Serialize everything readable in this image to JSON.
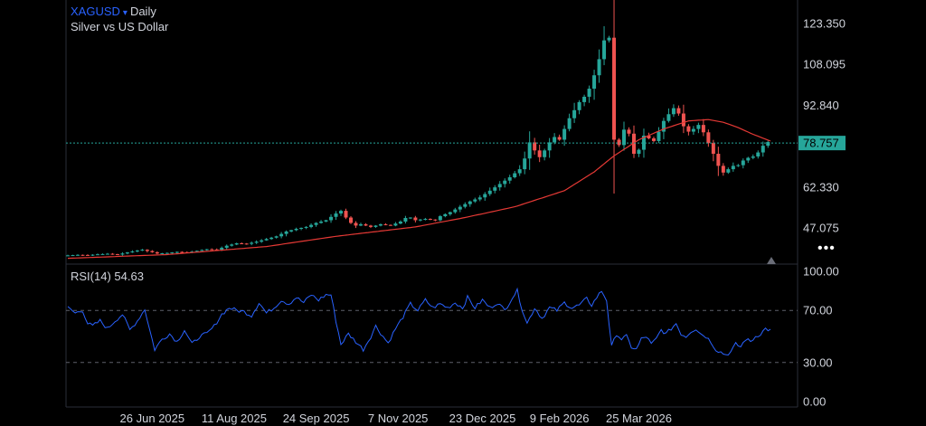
{
  "header": {
    "symbol": "XAGUSD",
    "caret": "▾",
    "interval": "Daily",
    "subtitle": "Silver vs US Dollar"
  },
  "price_pane": {
    "axis_labels": [
      "123.350",
      "108.095",
      "92.840",
      "78.757",
      "62.330",
      "47.075"
    ],
    "last_price": "78.757",
    "more_icon_text": "•••"
  },
  "rsi_pane": {
    "title": "RSI(14) 54.63",
    "axis_labels": [
      "100.00",
      "70.00",
      "30.00",
      "0.00"
    ]
  },
  "x_axis": {
    "labels": [
      "26 Jun 2025",
      "11 Aug 2025",
      "24 Sep 2025",
      "7 Nov 2025",
      "23 Dec 2025",
      "9 Feb 2026",
      "25 Mar 2026"
    ]
  },
  "colors": {
    "up": "#26a69a",
    "down": "#ef5350",
    "ma": "#e53935",
    "rsi": "#2962ff",
    "price_line": "#26a69a",
    "symbol": "#2962ff"
  },
  "chart_data": [
    {
      "type": "candlestick",
      "title": "XAGUSD Daily",
      "subtitle": "Silver vs US Dollar",
      "ylim": [
        35,
        128
      ],
      "ma_series_name": "",
      "last_price": 78.757,
      "close_series": [
        [
          0,
          36.9
        ],
        [
          4,
          37.1
        ],
        [
          8,
          37.0
        ],
        [
          12,
          37.3
        ],
        [
          16,
          37.5
        ],
        [
          20,
          37.2
        ],
        [
          24,
          38.0
        ],
        [
          28,
          38.7
        ],
        [
          30,
          39.0
        ],
        [
          33,
          38.3
        ],
        [
          36,
          37.6
        ],
        [
          40,
          37.8
        ],
        [
          44,
          38.2
        ],
        [
          48,
          38.0
        ],
        [
          52,
          38.6
        ],
        [
          56,
          39.2
        ],
        [
          60,
          39.0
        ],
        [
          64,
          40.5
        ],
        [
          68,
          41.4
        ],
        [
          72,
          41.2
        ],
        [
          76,
          42.0
        ],
        [
          80,
          43.0
        ],
        [
          84,
          44.0
        ],
        [
          88,
          45.8
        ],
        [
          92,
          46.8
        ],
        [
          96,
          47.5
        ],
        [
          100,
          49.0
        ],
        [
          104,
          50.0
        ],
        [
          108,
          52.5
        ],
        [
          110,
          53.5
        ],
        [
          112,
          51.0
        ],
        [
          114,
          49.0
        ],
        [
          116,
          48.0
        ],
        [
          118,
          48.5
        ],
        [
          122,
          47.5
        ],
        [
          126,
          48.5
        ],
        [
          130,
          48.0
        ],
        [
          134,
          49.5
        ],
        [
          137,
          51.5
        ],
        [
          140,
          50.0
        ],
        [
          144,
          50.5
        ],
        [
          148,
          50.0
        ],
        [
          150,
          51.5
        ],
        [
          154,
          53.0
        ],
        [
          158,
          55.0
        ],
        [
          162,
          57.0
        ],
        [
          166,
          58.5
        ],
        [
          170,
          61.0
        ],
        [
          174,
          63.5
        ],
        [
          178,
          66.0
        ],
        [
          182,
          69.0
        ],
        [
          184,
          73.0
        ],
        [
          186,
          79.0
        ],
        [
          188,
          76.0
        ],
        [
          190,
          73.5
        ],
        [
          192,
          76.0
        ],
        [
          194,
          79.0
        ],
        [
          196,
          81.0
        ],
        [
          198,
          80.0
        ],
        [
          200,
          84.0
        ],
        [
          202,
          88.0
        ],
        [
          204,
          91.0
        ],
        [
          206,
          94.0
        ],
        [
          208,
          96.0
        ],
        [
          210,
          99.0
        ],
        [
          212,
          104.0
        ],
        [
          214,
          110.0
        ],
        [
          216,
          117.0
        ],
        [
          218,
          118.0
        ],
        [
          219,
          84.0
        ],
        [
          221,
          76.0
        ],
        [
          223,
          80.0
        ],
        [
          225,
          87.5
        ],
        [
          227,
          77.0
        ],
        [
          229,
          72.5
        ],
        [
          231,
          80.0
        ],
        [
          233,
          83.0
        ],
        [
          235,
          78.0
        ],
        [
          237,
          81.0
        ],
        [
          239,
          85.0
        ],
        [
          241,
          89.0
        ],
        [
          243,
          90.0
        ],
        [
          245,
          93.5
        ],
        [
          247,
          86.0
        ],
        [
          249,
          84.0
        ],
        [
          251,
          82.0
        ],
        [
          253,
          86.0
        ],
        [
          255,
          85.0
        ],
        [
          257,
          80.5
        ],
        [
          259,
          77.0
        ],
        [
          261,
          72.5
        ],
        [
          263,
          68.0
        ],
        [
          265,
          67.5
        ],
        [
          267,
          70.5
        ],
        [
          269,
          70.0
        ],
        [
          271,
          71.0
        ],
        [
          273,
          73.5
        ],
        [
          275,
          73.0
        ],
        [
          277,
          74.5
        ],
        [
          279,
          76.0
        ],
        [
          281,
          79.5
        ],
        [
          283,
          78.757
        ]
      ],
      "ma_series": [
        [
          0,
          35.8
        ],
        [
          40,
          37.2
        ],
        [
          80,
          40.2
        ],
        [
          108,
          44.0
        ],
        [
          140,
          47.5
        ],
        [
          160,
          51.0
        ],
        [
          180,
          55.0
        ],
        [
          200,
          61.0
        ],
        [
          212,
          68.0
        ],
        [
          220,
          74.0
        ],
        [
          230,
          80.0
        ],
        [
          240,
          84.0
        ],
        [
          250,
          87.0
        ],
        [
          258,
          87.5
        ],
        [
          264,
          86.5
        ],
        [
          270,
          84.5
        ],
        [
          276,
          82.0
        ],
        [
          283,
          79.5
        ]
      ]
    },
    {
      "type": "line",
      "title": "RSI(14)",
      "ylim": [
        0,
        100
      ],
      "levels": [
        70,
        30
      ],
      "current": 54.63,
      "series": [
        [
          0,
          72
        ],
        [
          3,
          68
        ],
        [
          6,
          70
        ],
        [
          8,
          60
        ],
        [
          10,
          58
        ],
        [
          13,
          62
        ],
        [
          16,
          56
        ],
        [
          19,
          62
        ],
        [
          22,
          67
        ],
        [
          25,
          55
        ],
        [
          28,
          62
        ],
        [
          31,
          71
        ],
        [
          33,
          55
        ],
        [
          35,
          40
        ],
        [
          38,
          48
        ],
        [
          41,
          52
        ],
        [
          44,
          46
        ],
        [
          47,
          55
        ],
        [
          50,
          44
        ],
        [
          53,
          50
        ],
        [
          56,
          52
        ],
        [
          59,
          58
        ],
        [
          62,
          67
        ],
        [
          65,
          72
        ],
        [
          68,
          70
        ],
        [
          71,
          69
        ],
        [
          74,
          66
        ],
        [
          77,
          76
        ],
        [
          80,
          68
        ],
        [
          83,
          72
        ],
        [
          86,
          78
        ],
        [
          89,
          75
        ],
        [
          92,
          80
        ],
        [
          95,
          76
        ],
        [
          98,
          82
        ],
        [
          101,
          78
        ],
        [
          104,
          82
        ],
        [
          106,
          82
        ],
        [
          108,
          62
        ],
        [
          110,
          44
        ],
        [
          113,
          52
        ],
        [
          116,
          46
        ],
        [
          119,
          40
        ],
        [
          122,
          50
        ],
        [
          124,
          58
        ],
        [
          127,
          50
        ],
        [
          129,
          45
        ],
        [
          132,
          56
        ],
        [
          135,
          65
        ],
        [
          138,
          75
        ],
        [
          141,
          70
        ],
        [
          144,
          78
        ],
        [
          147,
          72
        ],
        [
          150,
          75
        ],
        [
          153,
          72
        ],
        [
          156,
          76
        ],
        [
          159,
          72
        ],
        [
          161,
          80
        ],
        [
          164,
          72
        ],
        [
          167,
          78
        ],
        [
          170,
          72
        ],
        [
          173,
          76
        ],
        [
          176,
          70
        ],
        [
          179,
          80
        ],
        [
          181,
          85
        ],
        [
          183,
          71
        ],
        [
          185,
          60
        ],
        [
          188,
          72
        ],
        [
          191,
          64
        ],
        [
          194,
          72
        ],
        [
          197,
          70
        ],
        [
          200,
          76
        ],
        [
          203,
          72
        ],
        [
          206,
          74
        ],
        [
          209,
          79
        ],
        [
          211,
          74
        ],
        [
          213,
          80
        ],
        [
          215,
          85
        ],
        [
          217,
          78
        ],
        [
          219,
          42
        ],
        [
          221,
          52
        ],
        [
          223,
          48
        ],
        [
          225,
          50
        ],
        [
          227,
          42
        ],
        [
          229,
          40
        ],
        [
          231,
          48
        ],
        [
          233,
          50
        ],
        [
          235,
          44
        ],
        [
          237,
          48
        ],
        [
          239,
          55
        ],
        [
          241,
          52
        ],
        [
          243,
          56
        ],
        [
          245,
          60
        ],
        [
          247,
          52
        ],
        [
          249,
          50
        ],
        [
          251,
          54
        ],
        [
          253,
          56
        ],
        [
          255,
          52
        ],
        [
          257,
          50
        ],
        [
          259,
          46
        ],
        [
          261,
          40
        ],
        [
          263,
          38
        ],
        [
          265,
          36
        ],
        [
          267,
          38
        ],
        [
          269,
          44
        ],
        [
          271,
          42
        ],
        [
          273,
          48
        ],
        [
          275,
          46
        ],
        [
          277,
          50
        ],
        [
          279,
          52
        ],
        [
          281,
          56
        ],
        [
          283,
          54.63
        ]
      ]
    }
  ]
}
